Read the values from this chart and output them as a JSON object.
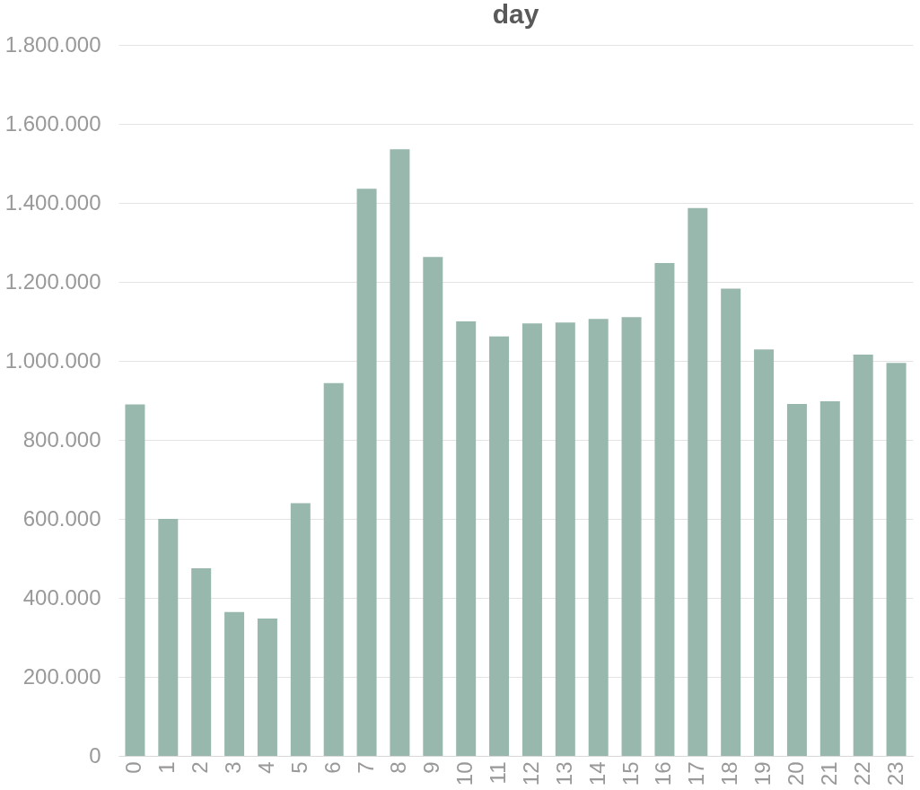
{
  "chart_data": {
    "type": "bar",
    "title": "day",
    "categories": [
      "0",
      "1",
      "2",
      "3",
      "4",
      "5",
      "6",
      "7",
      "8",
      "9",
      "10",
      "11",
      "12",
      "13",
      "14",
      "15",
      "16",
      "17",
      "18",
      "19",
      "20",
      "21",
      "22",
      "23"
    ],
    "values": [
      890000,
      600000,
      475000,
      364000,
      348000,
      640000,
      944000,
      1436000,
      1536000,
      1263000,
      1100000,
      1062000,
      1095000,
      1097000,
      1106000,
      1111000,
      1248000,
      1387000,
      1183000,
      1029000,
      891000,
      898000,
      1016000,
      995000
    ],
    "color": "#99b8ad",
    "ylim": [
      0,
      1800000
    ],
    "yticks": [
      {
        "value": 0,
        "label": "0"
      },
      {
        "value": 200000,
        "label": "200.000"
      },
      {
        "value": 400000,
        "label": "400.000"
      },
      {
        "value": 600000,
        "label": "600.000"
      },
      {
        "value": 800000,
        "label": "800.000"
      },
      {
        "value": 1000000,
        "label": "1.000.000"
      },
      {
        "value": 1200000,
        "label": "1.200.000"
      },
      {
        "value": 1400000,
        "label": "1.400.000"
      },
      {
        "value": 1600000,
        "label": "1.600.000"
      },
      {
        "value": 1800000,
        "label": "1.800.000"
      }
    ],
    "grid": "y"
  }
}
